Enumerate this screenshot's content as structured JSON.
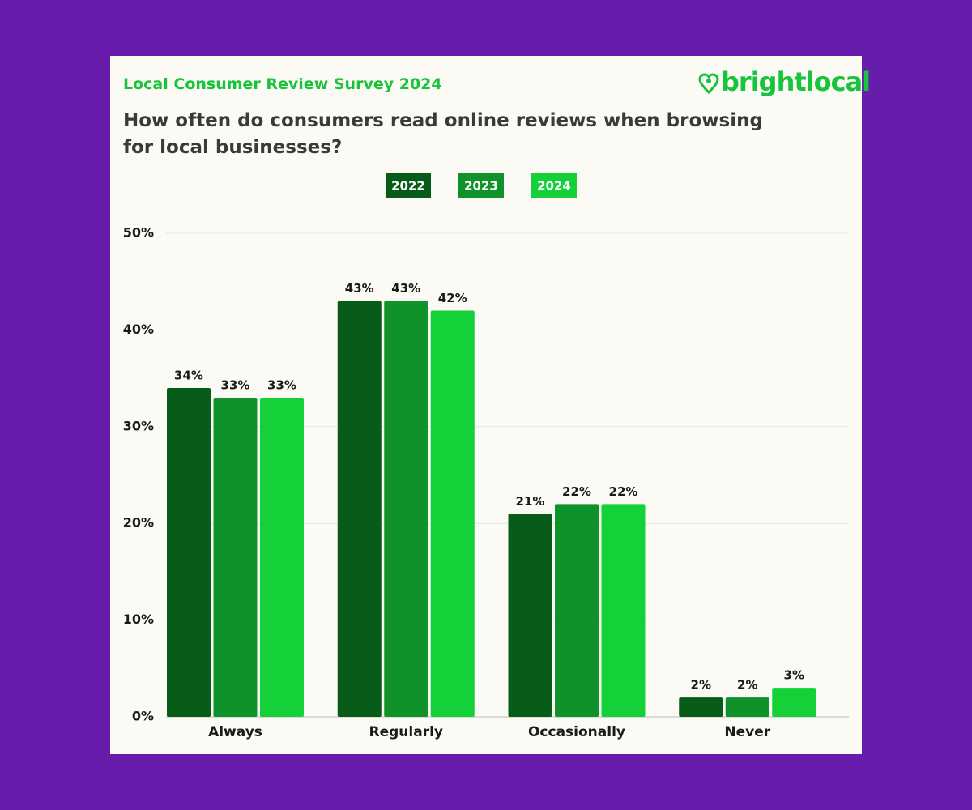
{
  "brand": "brightlocal",
  "chart_data": {
    "type": "bar",
    "title": "Local Consumer Review Survey 2024",
    "subtitle": "How often do consumers read online reviews when browsing for local businesses?",
    "categories": [
      "Always",
      "Regularly",
      "Occasionally",
      "Never"
    ],
    "series": [
      {
        "name": "2022",
        "color": "#075c19",
        "values": [
          34,
          43,
          21,
          2
        ],
        "value_labels": [
          "34%",
          "43%",
          "21%",
          "2%"
        ]
      },
      {
        "name": "2023",
        "color": "#0f922a",
        "values": [
          33,
          43,
          22,
          2
        ],
        "value_labels": [
          "33%",
          "43%",
          "22%",
          "2%"
        ]
      },
      {
        "name": "2024",
        "color": "#14d13a",
        "values": [
          33,
          42,
          22,
          3
        ],
        "value_labels": [
          "33%",
          "42%",
          "22%",
          "3%"
        ]
      }
    ],
    "ylim": [
      0,
      50
    ],
    "yticks": [
      {
        "value": 0,
        "label": "0%"
      },
      {
        "value": 10,
        "label": "10%"
      },
      {
        "value": 20,
        "label": "20%"
      },
      {
        "value": 30,
        "label": "30%"
      },
      {
        "value": 40,
        "label": "40%"
      },
      {
        "value": 50,
        "label": "50%"
      }
    ],
    "grid": true,
    "legend": "top"
  }
}
